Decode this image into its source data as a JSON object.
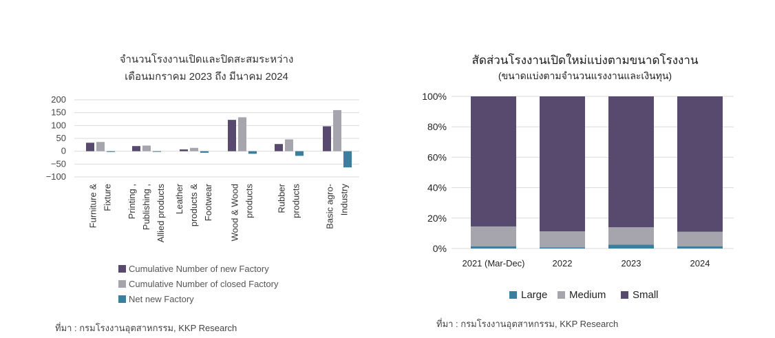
{
  "left": {
    "title_line1": "จำนวนโรงงานเปิดและปิดสะสมระหว่าง",
    "title_line2": "เดือนมกราคม 2023 ถึง มีนาคม 2024",
    "source": "ที่มา : กรมโรงงานอุตสาหกรรม, KKP Research",
    "colors": {
      "new": "#574a6e",
      "closed": "#a6a5ad",
      "net": "#3b7f9e"
    }
  },
  "right": {
    "title": "สัดส่วนโรงงานเปิดใหม่แบ่งตามขนาดโรงงาน",
    "subtitle": "(ขนาดแบ่งตามจำนวนแรงงานและเงินทุน)",
    "source": "ที่มา : กรมโรงงานอุตสาหกรรม, KKP Research",
    "colors": {
      "Large": "#3b7f9e",
      "Medium": "#a6a5ad",
      "Small": "#574a6e"
    }
  },
  "chart_data": [
    {
      "type": "bar",
      "categories": [
        [
          "Furniture &",
          "Fixture"
        ],
        [
          "Printing ,",
          "Publishing ,",
          "Allied products"
        ],
        [
          "Leather",
          "products &",
          "Footwear"
        ],
        [
          "Wood & Wood",
          "products"
        ],
        [
          "Rubber",
          "products"
        ],
        [
          "Basic agro-",
          "Industry"
        ]
      ],
      "series": [
        {
          "name": "Cumulative Number of new Factory",
          "values": [
            33,
            20,
            7,
            122,
            28,
            97
          ]
        },
        {
          "name": "Cumulative Number of closed Factory",
          "values": [
            36,
            22,
            13,
            132,
            46,
            160
          ]
        },
        {
          "name": "Net new Factory",
          "values": [
            -3,
            -2,
            -6,
            -10,
            -18,
            -63
          ]
        }
      ],
      "ylim": [
        -100,
        200
      ],
      "yticks": [
        200,
        150,
        100,
        50,
        0,
        -50,
        -100
      ],
      "ytick_labels": [
        "200",
        "150",
        "100",
        "50",
        "0",
        "−50",
        "−100"
      ],
      "grid": true,
      "legend_position": "bottom"
    },
    {
      "type": "bar",
      "stacked": true,
      "categories": [
        "2021 (Mar-Dec)",
        "2022",
        "2023",
        "2024"
      ],
      "series": [
        {
          "name": "Large",
          "values": [
            1.5,
            0.8,
            2.5,
            1.5
          ]
        },
        {
          "name": "Medium",
          "values": [
            13,
            10.5,
            11.5,
            9.5
          ]
        },
        {
          "name": "Small",
          "values": [
            85.5,
            88.7,
            86,
            89
          ]
        }
      ],
      "ylim": [
        0,
        100
      ],
      "ytick_labels": [
        "0%",
        "20%",
        "40%",
        "60%",
        "80%",
        "100%"
      ],
      "grid": true,
      "legend_position": "bottom"
    }
  ]
}
